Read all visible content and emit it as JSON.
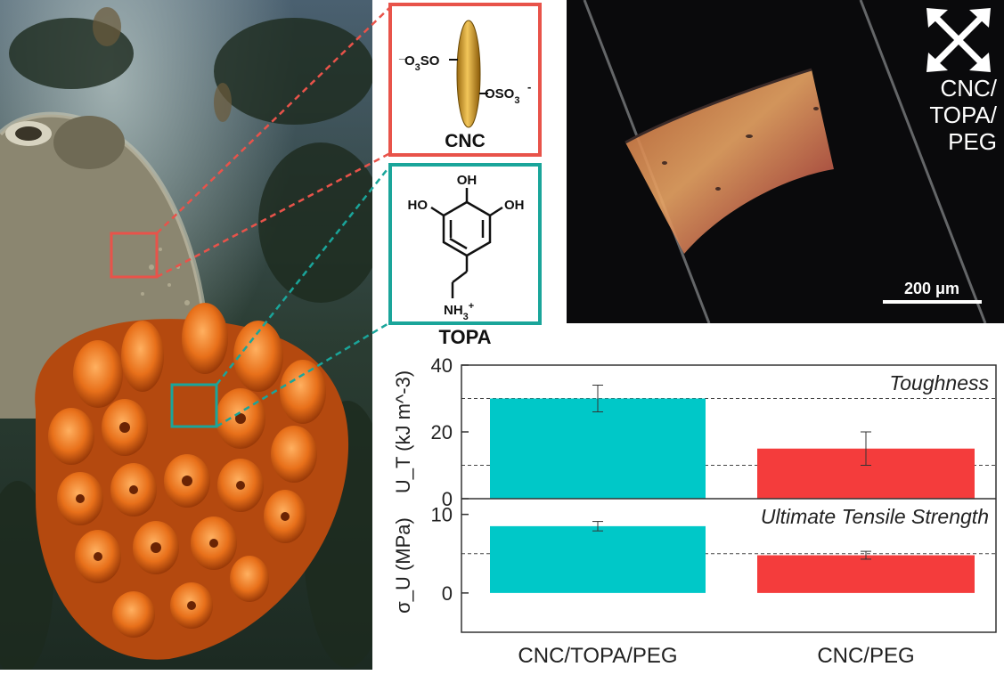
{
  "panels": {
    "cnc_label": "CNC",
    "cnc_left_group": "O3SO",
    "cnc_right_group": "OSO3",
    "topa_label": "TOPA",
    "topa_oh_top": "OH",
    "topa_oh_left": "HO",
    "topa_oh_right": "OH",
    "topa_amine": "NH3+",
    "micrograph_label_lines": [
      "CNC/",
      "TOPA/",
      "PEG"
    ],
    "scale_bar": "200 μm"
  },
  "colors": {
    "cnc_red": "#e8534a",
    "topa_teal": "#1aa59a",
    "bar_teal": "#00c8c8",
    "bar_red": "#f43c3c"
  },
  "chart_data": [
    {
      "type": "bar",
      "title": "Toughness",
      "ylabel": "U_T (kJ m^-3)",
      "categories": [
        "CNC/TOPA/PEG",
        "CNC/PEG"
      ],
      "values": [
        30,
        15
      ],
      "errors": [
        4,
        5
      ],
      "ylim": [
        0,
        40
      ],
      "yticks": [
        0,
        20,
        40
      ],
      "reference_lines": [
        10,
        30
      ]
    },
    {
      "type": "bar",
      "title": "Ultimate Tensile Strength",
      "ylabel": "σ_U (MPa)",
      "categories": [
        "CNC/TOPA/PEG",
        "CNC/PEG"
      ],
      "values": [
        8.5,
        4.8
      ],
      "errors": [
        0.6,
        0.5
      ],
      "ylim": [
        -5,
        12
      ],
      "yticks": [
        0,
        10
      ],
      "reference_lines": [
        5
      ]
    }
  ]
}
